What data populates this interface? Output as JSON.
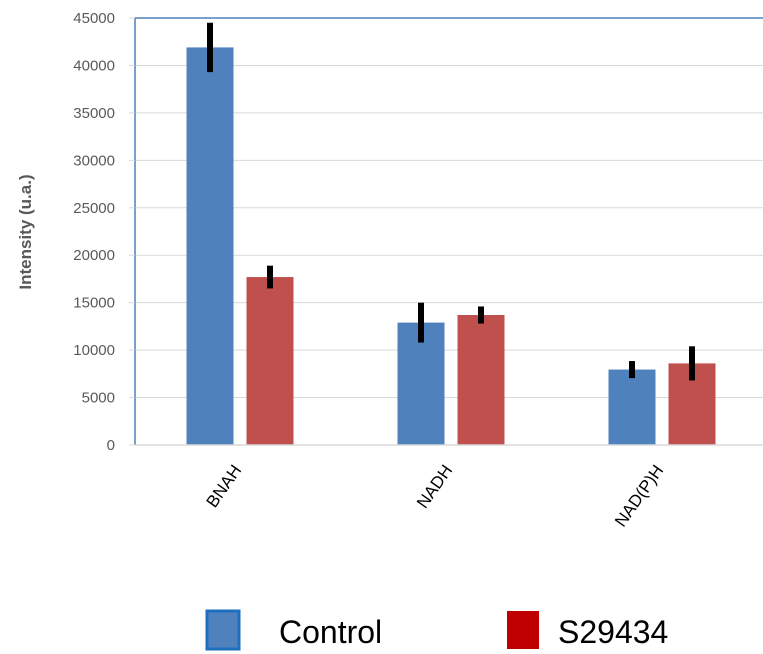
{
  "chart_data": {
    "type": "bar",
    "categories": [
      "BNAH",
      "NADH",
      "NAD(P)H"
    ],
    "series": [
      {
        "name": "Control",
        "values": [
          41900,
          12900,
          7950
        ],
        "errors": [
          2600,
          2100,
          900
        ],
        "color": "#4F81BD"
      },
      {
        "name": "S29434",
        "values": [
          17700,
          13700,
          8600
        ],
        "errors": [
          1200,
          900,
          1800
        ],
        "color": "#C0504D"
      }
    ],
    "ylabel": "Intensity (u.a.)",
    "xlabel": "",
    "ylim": [
      0,
      45000
    ],
    "yticks": [
      0,
      5000,
      10000,
      15000,
      20000,
      25000,
      30000,
      35000,
      40000,
      45000
    ],
    "grid": true,
    "legend": "bottom",
    "legend_swatch_colors": [
      "#4F81BD",
      "#C00000"
    ],
    "legend_border_color": "#1F6FBF"
  }
}
